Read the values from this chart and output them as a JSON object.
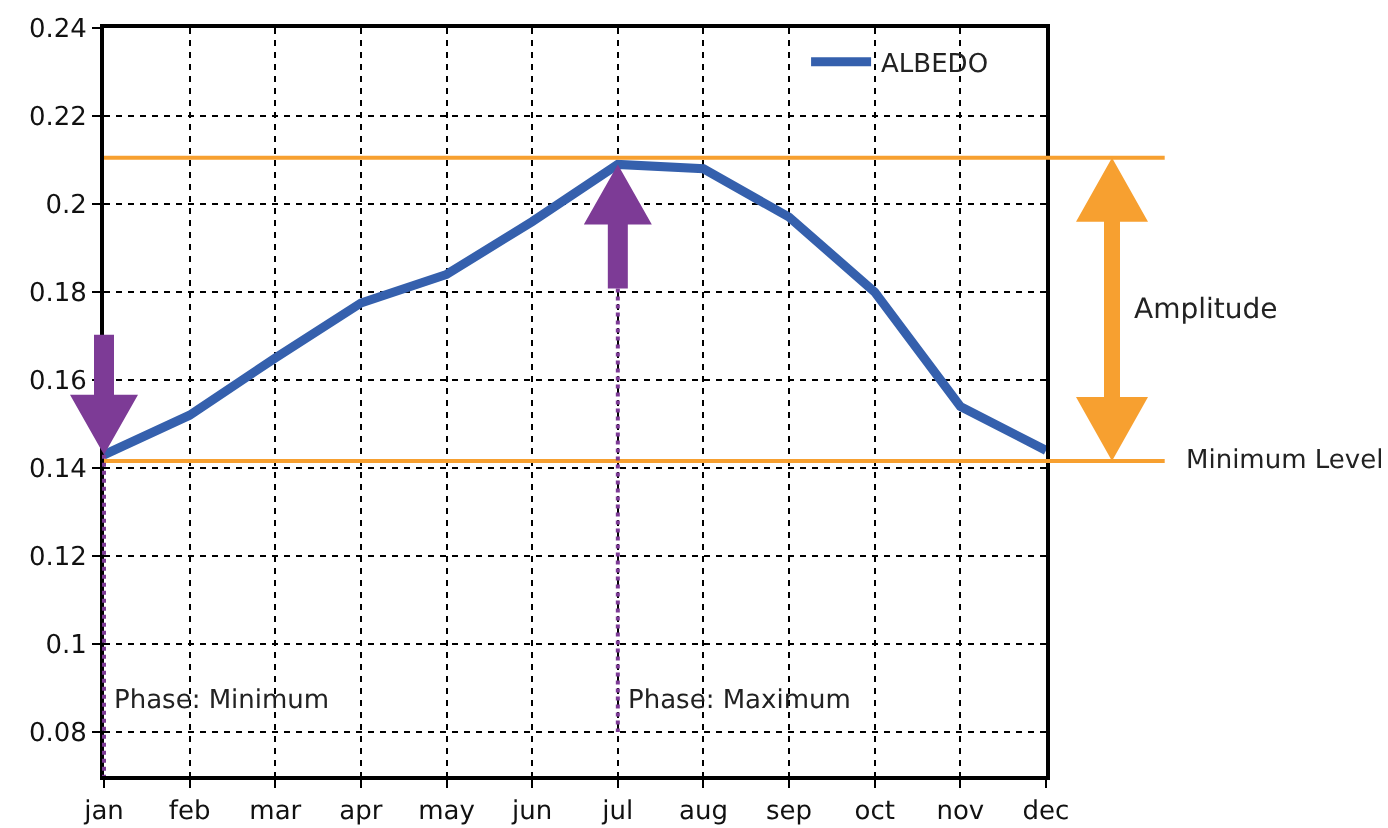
{
  "chart_data": {
    "type": "line",
    "categories": [
      "jan",
      "feb",
      "mar",
      "apr",
      "may",
      "jun",
      "jul",
      "aug",
      "sep",
      "oct",
      "nov",
      "dec"
    ],
    "series": [
      {
        "name": "ALBEDO",
        "color": "#3560ad",
        "values": [
          0.143,
          0.152,
          0.165,
          0.1775,
          0.184,
          0.196,
          0.209,
          0.208,
          0.197,
          0.18,
          0.154,
          0.144
        ]
      }
    ],
    "ylim": [
      0.07,
      0.24
    ],
    "yticks": [
      0.08,
      0.1,
      0.12,
      0.14,
      0.16,
      0.18,
      0.2,
      0.22,
      0.24
    ],
    "grid": true,
    "legend": "top right",
    "marker": "none",
    "line_style": "solid",
    "ref_lines": [
      {
        "axis": "y",
        "value": 0.2105,
        "color": "#f7a030"
      },
      {
        "axis": "y",
        "value": 0.1416,
        "label": "Minimum Level",
        "color": "#f7a030"
      }
    ],
    "annotations": [
      "Phase: Minimum",
      "Phase: Maximum",
      "Amplitude"
    ]
  }
}
